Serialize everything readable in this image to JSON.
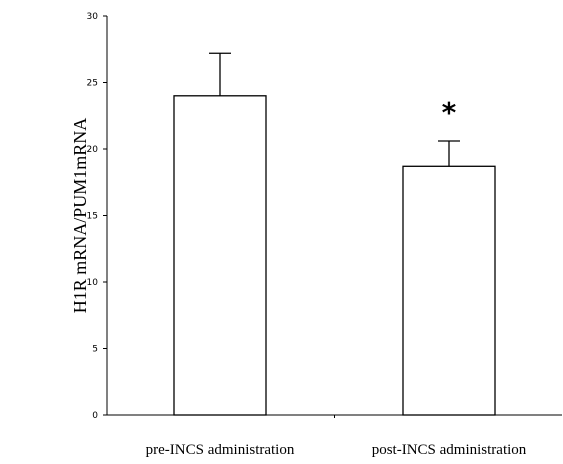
{
  "chart_data": {
    "type": "bar",
    "categories": [
      "pre-INCS administration",
      "post-INCS administration"
    ],
    "values": [
      24.0,
      18.7
    ],
    "error_upper": [
      3.2,
      1.9
    ],
    "ylabel": "H1R mRNA/PUM1mRNA",
    "xlabel": "",
    "ylim": [
      0,
      30
    ],
    "yticks": [
      0,
      5,
      10,
      15,
      20,
      25,
      30
    ],
    "ytick_labels": [
      "0",
      "5",
      "10",
      "15",
      "20",
      "25",
      "30"
    ],
    "annotations": [
      {
        "category_index": 1,
        "text": "*"
      }
    ],
    "grid": false,
    "legend": "none",
    "colors": {
      "bar_fill": "#ffffff",
      "bar_stroke": "#000000",
      "axis": "#000000"
    }
  }
}
